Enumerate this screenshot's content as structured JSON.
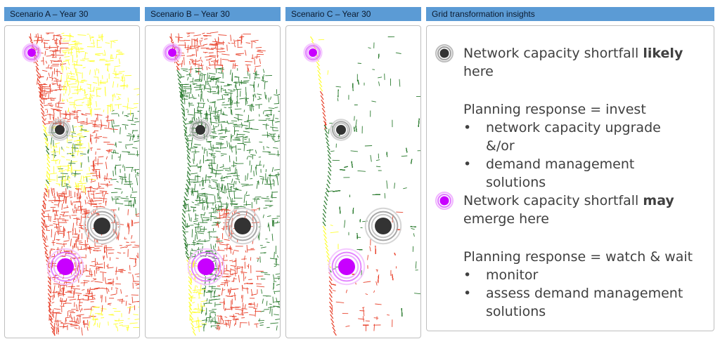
{
  "panels": [
    {
      "title": "Scenario A – Year 30",
      "scenario": "A"
    },
    {
      "title": "Scenario B – Year 30",
      "scenario": "B"
    },
    {
      "title": "Scenario C – Year 30",
      "scenario": "C"
    }
  ],
  "insights": {
    "title": "Grid transformation insights",
    "likely": {
      "pre": "Network capacity shortfall ",
      "bold": "likely",
      "post": "here",
      "response": "Planning response = invest",
      "bullets": [
        "network capacity upgrade",
        "&/or",
        "demand management",
        "solutions"
      ]
    },
    "may": {
      "pre": "Network capacity shortfall ",
      "bold": "may",
      "post": "emerge here",
      "response": "Planning response = watch & wait",
      "bullets": [
        "monitor",
        "assess demand management",
        "solutions"
      ]
    }
  },
  "colors": {
    "header": "#5b9bd5",
    "green": "#2e7d32",
    "red": "#e8432d",
    "yellow": "#ffff33",
    "likely_marker": "#333333",
    "may_marker": "#c800ff"
  },
  "icons": {
    "likely": "dark-ring-marker-icon",
    "may": "purple-ring-marker-icon"
  }
}
